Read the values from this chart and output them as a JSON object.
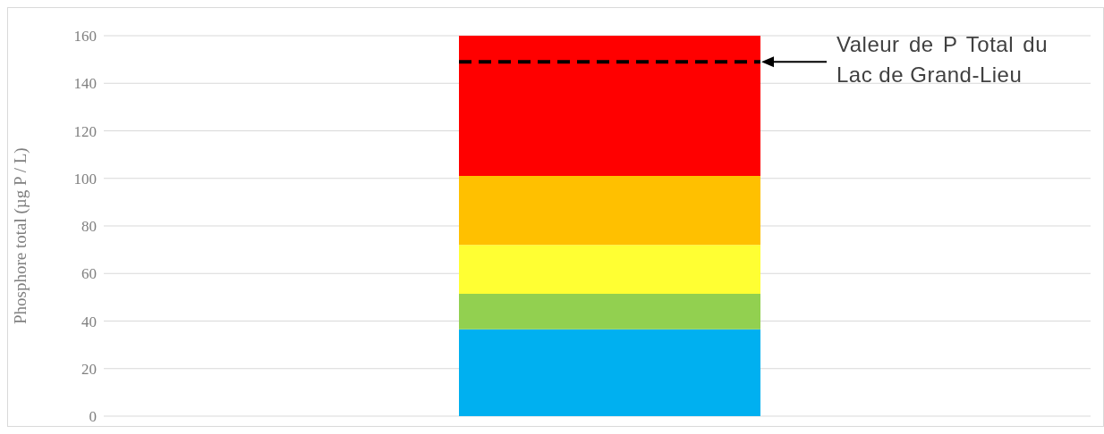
{
  "chart_data": {
    "type": "bar",
    "stacked": true,
    "ylabel": "Phosphore total (µg P / L)",
    "categories": [
      null
    ],
    "series": [
      {
        "color": "#00b0f0",
        "values": [
          36.5
        ]
      },
      {
        "color": "#92d050",
        "values": [
          15
        ]
      },
      {
        "color": "#ffff33",
        "values": [
          20.5
        ]
      },
      {
        "color": "#ffc000",
        "values": [
          29
        ]
      },
      {
        "color": "#ff0000",
        "values": [
          59
        ]
      }
    ],
    "ylim": [
      0,
      160
    ],
    "yticks": [
      0,
      20,
      40,
      60,
      80,
      100,
      120,
      140,
      160
    ],
    "grid": "y",
    "legend": false,
    "ref_lines": [
      {
        "axis": "y",
        "value": 149,
        "color": "#000000",
        "line_style": "dashed"
      }
    ],
    "annotations": [
      "Valeur de P Total du Lac de Grand-Lieu"
    ]
  }
}
